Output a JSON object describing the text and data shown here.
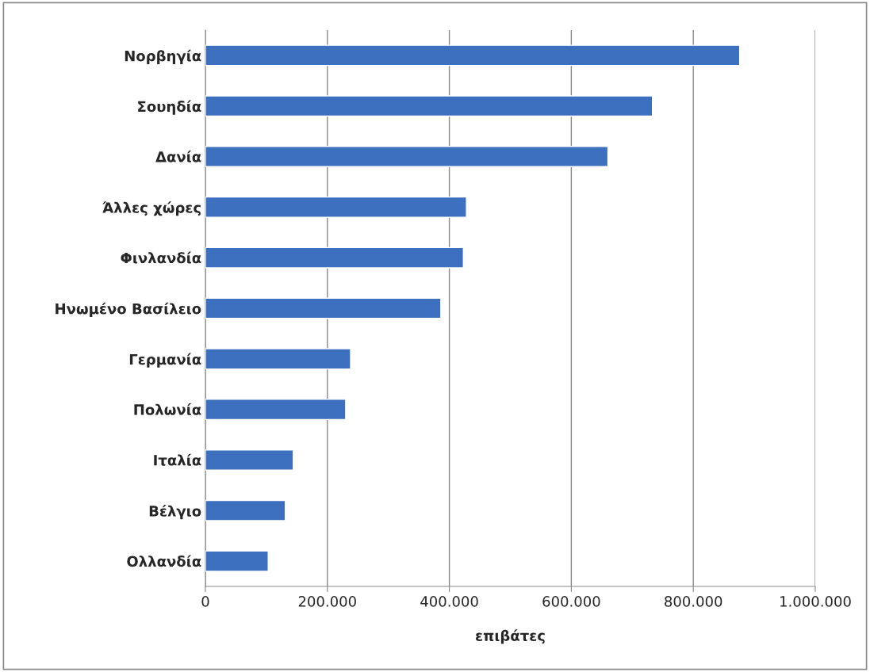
{
  "chart_data": {
    "type": "bar",
    "orientation": "horizontal",
    "xlabel": "επιβάτες",
    "categories": [
      "Νορβηγία",
      "Σουηδία",
      "Δανία",
      "Άλλες χώρες",
      "Φινλανδία",
      "Ηνωμένο Βασίλειο",
      "Γερμανία",
      "Πολωνία",
      "Ιταλία",
      "Βέλγιο",
      "Ολλανδία"
    ],
    "values": [
      876000,
      733000,
      660000,
      428000,
      423000,
      386000,
      238000,
      230000,
      144000,
      131000,
      103000
    ],
    "color": "#3c6fbe",
    "xlim": [
      0,
      1000000
    ],
    "xticks": [
      0,
      {
        "value": 200000,
        "label": "200.000"
      },
      {
        "value": 400000,
        "label": "400.000"
      },
      {
        "value": 600000,
        "label": "600.000"
      },
      {
        "value": 800000,
        "label": "800.000"
      },
      {
        "value": 1000000,
        "label": "1.000.000"
      }
    ],
    "grid": "x"
  }
}
